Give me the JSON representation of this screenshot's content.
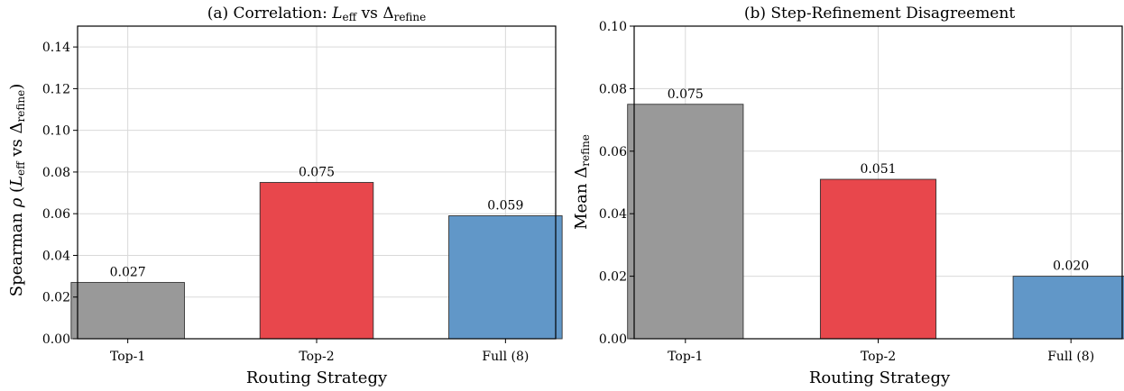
{
  "chart_data": [
    {
      "type": "bar",
      "title_main": "(a) Correlation: ",
      "title_math": [
        "L",
        "eff",
        " vs ",
        "Δ",
        "refine"
      ],
      "ylabel_main": "Spearman ",
      "ylabel_math": [
        "ρ",
        " (",
        "L",
        "eff",
        " vs ",
        "Δ",
        "refine",
        ")"
      ],
      "xlabel": "Routing Strategy",
      "categories": [
        "Top-1",
        "Top-2",
        "Full (8)"
      ],
      "values": [
        0.027,
        0.075,
        0.059
      ],
      "value_labels": [
        "0.027",
        "0.075",
        "0.059"
      ],
      "colors": [
        "#999999",
        "#e8474c",
        "#6197c8"
      ],
      "ylim": [
        0,
        0.15
      ],
      "yticks": [
        0.0,
        0.02,
        0.04,
        0.06,
        0.08,
        0.1,
        0.12,
        0.14
      ],
      "ytick_labels": [
        "0.00",
        "0.02",
        "0.04",
        "0.06",
        "0.08",
        "0.10",
        "0.12",
        "0.14"
      ],
      "grid": true
    },
    {
      "type": "bar",
      "title_main": "(b) Step-Refinement Disagreement",
      "ylabel_main": "Mean ",
      "ylabel_math": [
        "Δ",
        "refine"
      ],
      "xlabel": "Routing Strategy",
      "categories": [
        "Top-1",
        "Top-2",
        "Full (8)"
      ],
      "values": [
        0.075,
        0.051,
        0.02
      ],
      "value_labels": [
        "0.075",
        "0.051",
        "0.020"
      ],
      "colors": [
        "#999999",
        "#e8474c",
        "#6197c8"
      ],
      "ylim": [
        0,
        0.1
      ],
      "yticks": [
        0.0,
        0.02,
        0.04,
        0.06,
        0.08,
        0.1
      ],
      "ytick_labels": [
        "0.00",
        "0.02",
        "0.04",
        "0.06",
        "0.08",
        "0.10"
      ],
      "grid": true
    }
  ]
}
